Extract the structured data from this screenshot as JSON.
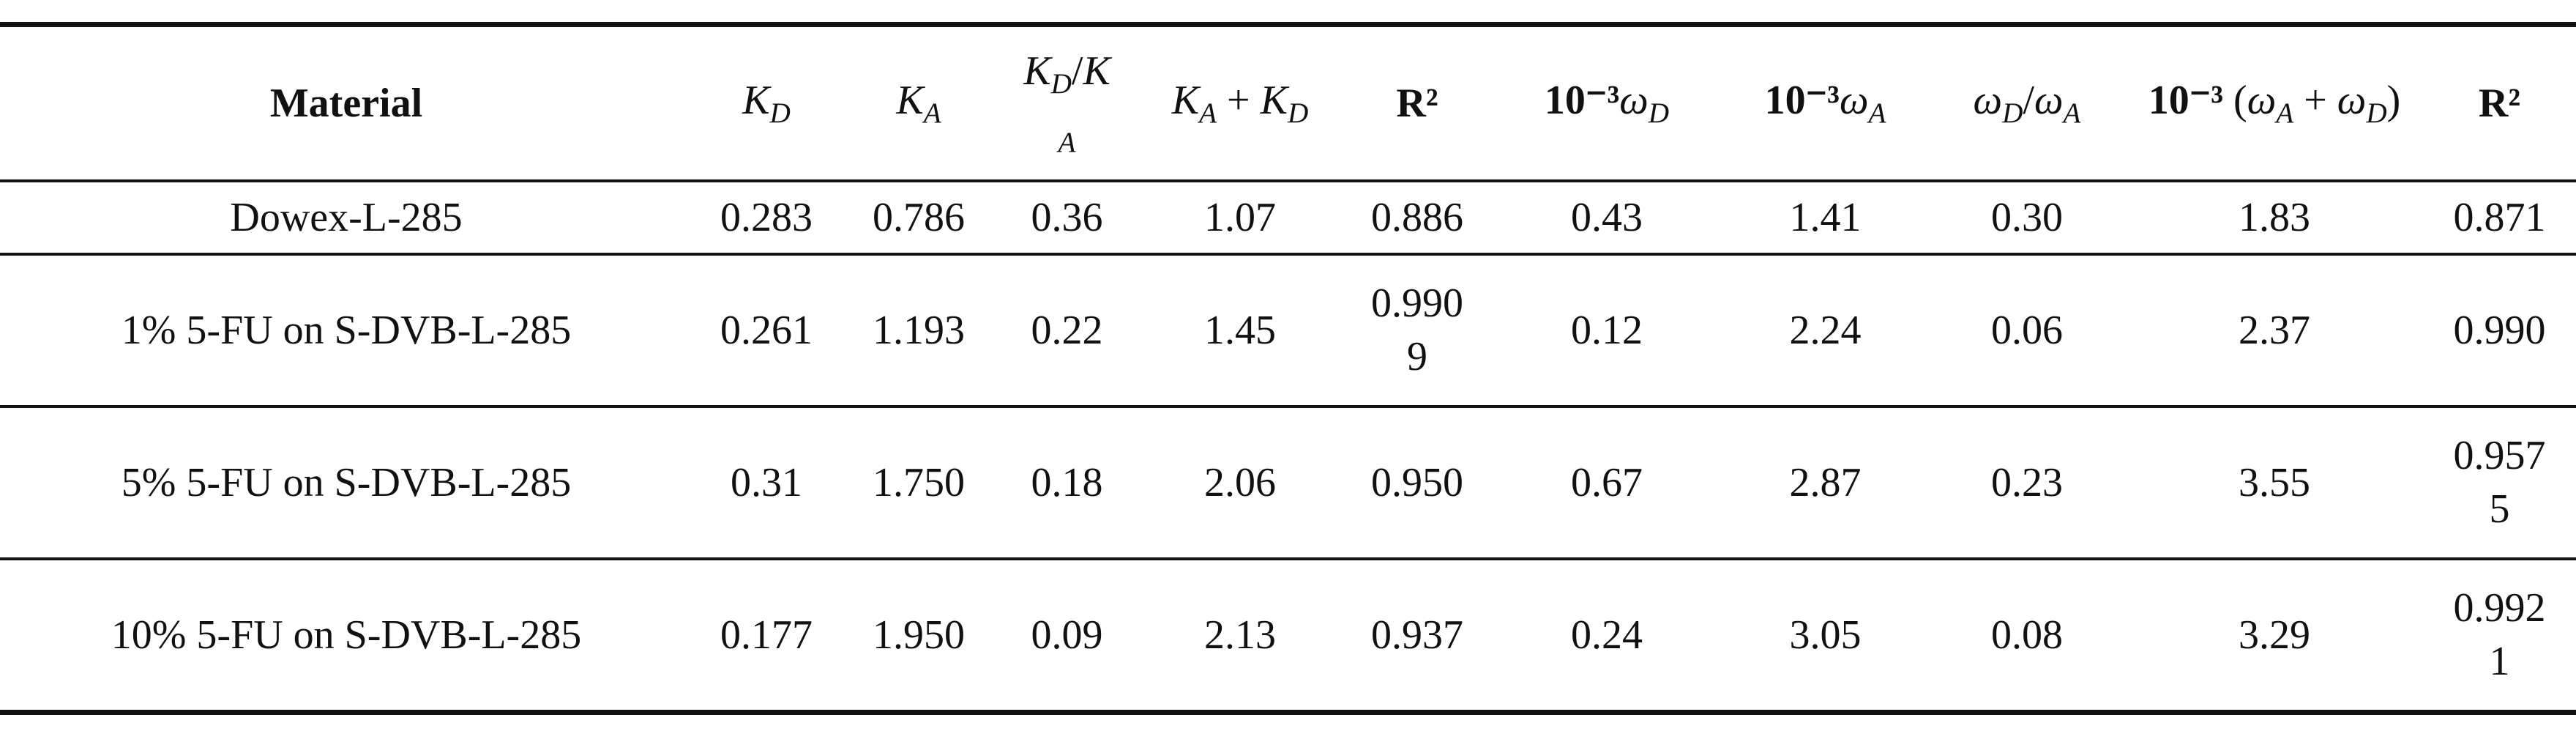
{
  "table": {
    "header": [
      [
        {
          "text": "Material",
          "tag": "b"
        }
      ],
      [
        {
          "text": "K",
          "tag": "i"
        },
        {
          "text": "D",
          "tag": "sub"
        }
      ],
      [
        {
          "text": "K",
          "tag": "i"
        },
        {
          "text": "A",
          "tag": "sub"
        }
      ],
      [
        {
          "text": "K",
          "tag": "i"
        },
        {
          "text": "D",
          "tag": "sub"
        },
        {
          "text": "/",
          "tag": "span"
        },
        {
          "text": "K",
          "tag": "i"
        },
        {
          "text": "A",
          "tag": "sub"
        }
      ],
      [
        {
          "text": "K",
          "tag": "i"
        },
        {
          "text": "A",
          "tag": "sub"
        },
        {
          "text": " + ",
          "tag": "span"
        },
        {
          "text": "K",
          "tag": "i"
        },
        {
          "text": "D",
          "tag": "sub"
        }
      ],
      [
        {
          "text": "R²",
          "tag": "b"
        }
      ],
      [
        {
          "text": "10⁻³",
          "tag": "b"
        },
        {
          "text": "ω",
          "tag": "i"
        },
        {
          "text": "D",
          "tag": "sub"
        }
      ],
      [
        {
          "text": "10⁻³",
          "tag": "b"
        },
        {
          "text": "ω",
          "tag": "i"
        },
        {
          "text": "A",
          "tag": "sub"
        }
      ],
      [
        {
          "text": "ω",
          "tag": "i"
        },
        {
          "text": "D",
          "tag": "sub"
        },
        {
          "text": "/",
          "tag": "span"
        },
        {
          "text": "ω",
          "tag": "i"
        },
        {
          "text": "A",
          "tag": "sub"
        }
      ],
      [
        {
          "text": "10⁻³",
          "tag": "b"
        },
        {
          "text": " (",
          "tag": "span"
        },
        {
          "text": "ω",
          "tag": "i"
        },
        {
          "text": "A",
          "tag": "sub"
        },
        {
          "text": " + ",
          "tag": "span"
        },
        {
          "text": "ω",
          "tag": "i"
        },
        {
          "text": "D",
          "tag": "sub"
        },
        {
          "text": ")",
          "tag": "span"
        }
      ],
      [
        {
          "text": "R²",
          "tag": "b"
        }
      ]
    ],
    "rows": [
      [
        "Dowex-L-285",
        "0.283",
        "0.786",
        "0.36",
        "1.07",
        "0.886",
        "0.43",
        "1.41",
        "0.30",
        "1.83",
        "0.871"
      ],
      [
        "1% 5-FU on S-DVB-L-285",
        "0.261",
        "1.193",
        "0.22",
        "1.45",
        "0.9909",
        "0.12",
        "2.24",
        "0.06",
        "2.37",
        "0.990"
      ],
      [
        "5% 5-FU on S-DVB-L-285",
        "0.31",
        "1.750",
        "0.18",
        "2.06",
        "0.950",
        "0.67",
        "2.87",
        "0.23",
        "3.55",
        "0.9575"
      ],
      [
        "10% 5-FU on S-DVB-L-285",
        "0.177",
        "1.950",
        "0.09",
        "2.13",
        "0.937",
        "0.24",
        "3.05",
        "0.08",
        "3.29",
        "0.9921"
      ]
    ]
  }
}
